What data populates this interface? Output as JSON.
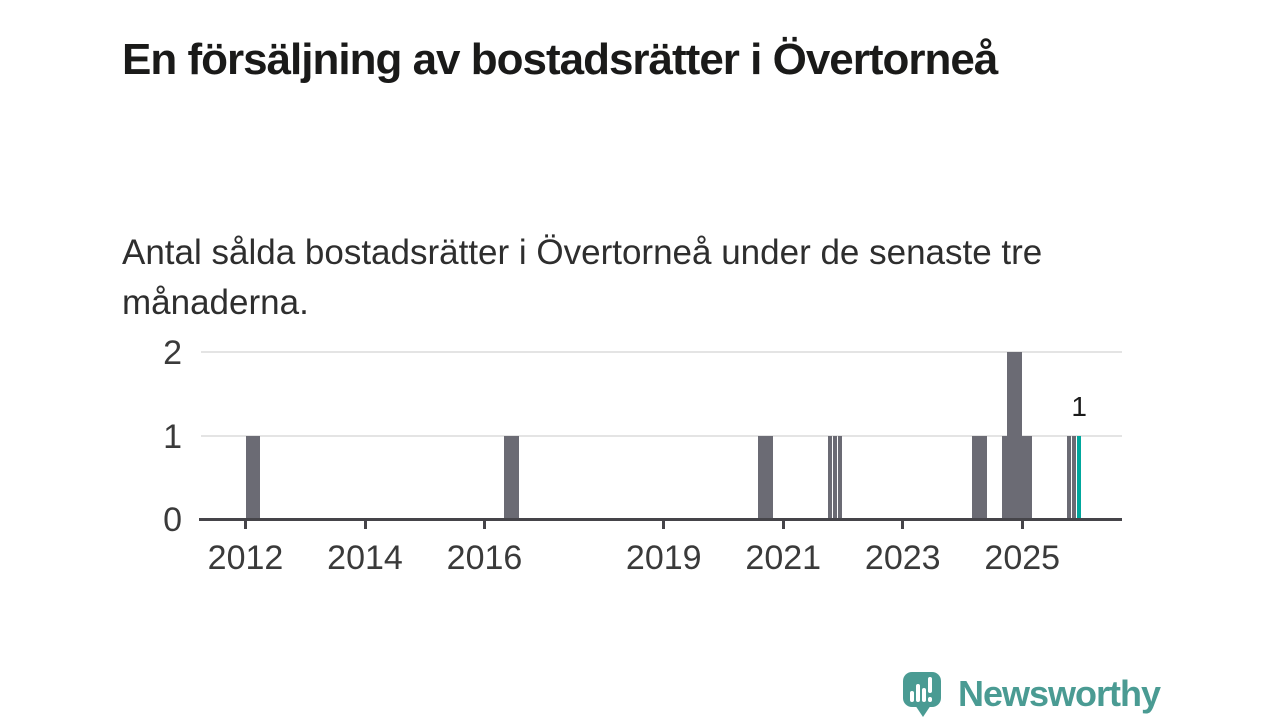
{
  "page": {
    "title": "En försäljning av bostadsrätter i Övertorneå",
    "subtitle": "Antal sålda bostadsrätter i Övertorneå under de senaste tre månaderna."
  },
  "chart_data": {
    "type": "bar",
    "title": "En försäljning av bostadsrätter i Övertorneå",
    "subtitle": "Antal sålda bostadsrätter i Övertorneå under de senaste tre månaderna.",
    "x_tick_years": [
      2012,
      2014,
      2016,
      2019,
      2021,
      2023,
      2025
    ],
    "x_tick_labels": [
      "2012",
      "2014",
      "2016",
      "2019",
      "2021",
      "2023",
      "2025"
    ],
    "y_ticks": [
      0,
      1,
      2
    ],
    "ylim": [
      0,
      2
    ],
    "xlim_years": [
      2011.25,
      2026.67
    ],
    "grid": "horizontal",
    "legend": "none",
    "bar_color": "#6b6b74",
    "highlight_color": "#00a79d",
    "points": [
      {
        "month": "2012-01",
        "value": 1
      },
      {
        "month": "2012-02",
        "value": 1
      },
      {
        "month": "2012-03",
        "value": 1
      },
      {
        "month": "2016-05",
        "value": 1
      },
      {
        "month": "2016-06",
        "value": 1
      },
      {
        "month": "2016-07",
        "value": 1
      },
      {
        "month": "2020-08",
        "value": 1
      },
      {
        "month": "2020-09",
        "value": 1
      },
      {
        "month": "2020-10",
        "value": 1
      },
      {
        "month": "2021-10",
        "value": 1
      },
      {
        "month": "2021-11",
        "value": 1
      },
      {
        "month": "2021-12",
        "value": 1
      },
      {
        "month": "2024-03",
        "value": 1
      },
      {
        "month": "2024-04",
        "value": 1
      },
      {
        "month": "2024-05",
        "value": 1
      },
      {
        "month": "2024-09",
        "value": 1
      },
      {
        "month": "2024-10",
        "value": 2
      },
      {
        "month": "2024-11",
        "value": 2
      },
      {
        "month": "2024-12",
        "value": 2
      },
      {
        "month": "2025-01",
        "value": 1
      },
      {
        "month": "2025-02",
        "value": 1
      },
      {
        "month": "2025-10",
        "value": 1
      },
      {
        "month": "2025-11",
        "value": 1
      },
      {
        "month": "2025-12",
        "value": 1
      }
    ],
    "all_unlisted_months": 0,
    "highlight_month": "2025-12",
    "highlight_label": "1"
  },
  "footer": {
    "brand": "Newsworthy"
  }
}
